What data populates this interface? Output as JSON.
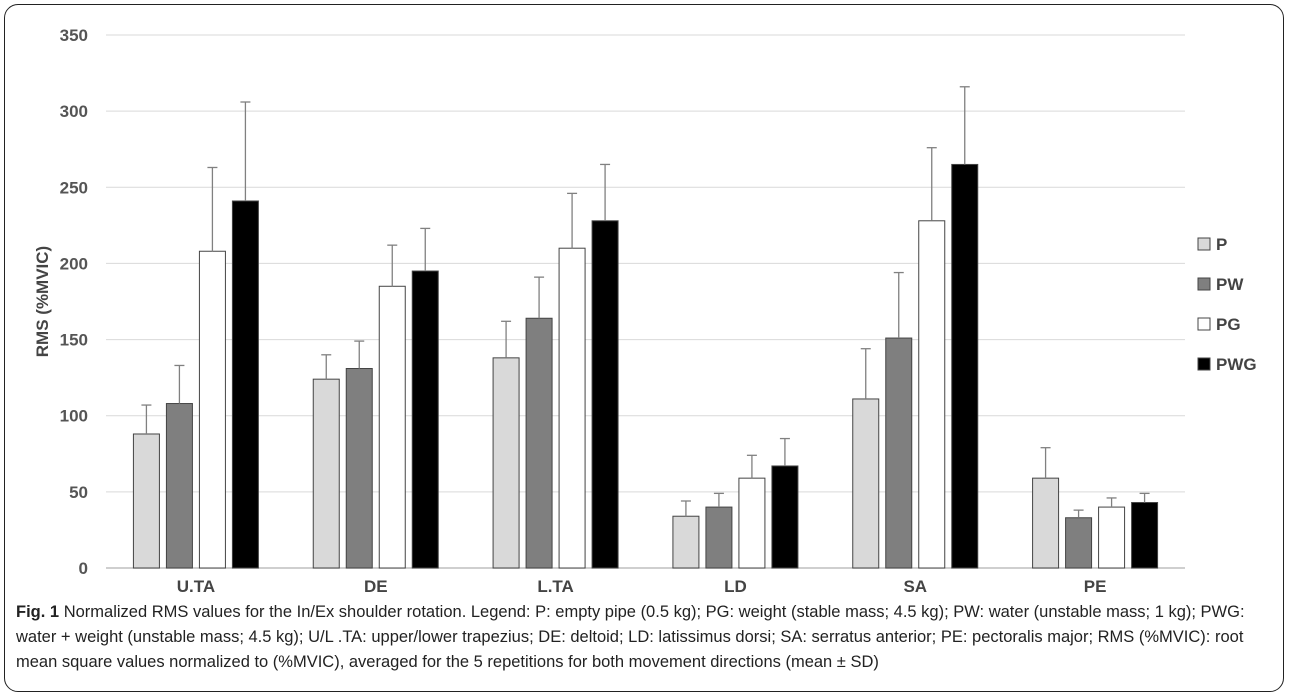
{
  "chart_data": {
    "type": "bar",
    "ylabel": "RMS (%MVIC)",
    "ylim": [
      0,
      350
    ],
    "yticks": [
      0,
      50,
      100,
      150,
      200,
      250,
      300,
      350
    ],
    "grid": true,
    "legend_position": "right",
    "categories": [
      "U.TA",
      "DE",
      "L.TA",
      "LD",
      "SA",
      "PE"
    ],
    "series": [
      {
        "name": "P",
        "color": "#d9d9d9",
        "values": [
          88,
          124,
          138,
          34,
          111,
          59
        ],
        "errors": [
          19,
          16,
          24,
          10,
          33,
          20
        ]
      },
      {
        "name": "PW",
        "color": "#7f7f7f",
        "values": [
          108,
          131,
          164,
          40,
          151,
          33
        ],
        "errors": [
          25,
          18,
          27,
          9,
          43,
          5
        ]
      },
      {
        "name": "PG",
        "color": "#ffffff",
        "values": [
          208,
          185,
          210,
          59,
          228,
          40
        ],
        "errors": [
          55,
          27,
          36,
          15,
          48,
          6
        ]
      },
      {
        "name": "PWG",
        "color": "#000000",
        "values": [
          241,
          195,
          228,
          67,
          265,
          43
        ],
        "errors": [
          65,
          28,
          37,
          18,
          51,
          6
        ]
      }
    ]
  },
  "caption": {
    "label": "Fig. 1",
    "text": "Normalized RMS values for the In/Ex shoulder rotation. Legend: P: empty pipe (0.5 kg); PG: weight (stable mass; 4.5 kg); PW: water (unstable mass; 1 kg); PWG: water + weight (unstable mass; 4.5 kg); U/L .TA: upper/lower trapezius; DE: deltoid; LD: latissimus dorsi; SA: serratus anterior; PE: pectoralis major; RMS (%MVIC): root mean square values normalized to (%MVIC), averaged for the 5 repetitions for both movement directions (mean ± SD)"
  }
}
